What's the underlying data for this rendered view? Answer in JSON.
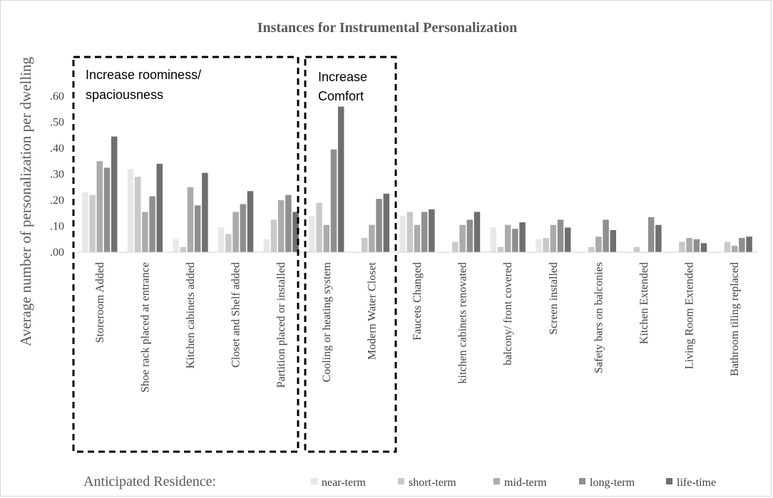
{
  "chart_data": {
    "type": "bar",
    "title": "Instances for Instrumental Personalization",
    "ylabel": "Average number of personalization per dwelling",
    "xlabel": "",
    "ylim": [
      0,
      0.6
    ],
    "yticks": [
      ".00",
      ".10",
      ".20",
      ".30",
      ".40",
      ".50",
      ".60"
    ],
    "categories": [
      "Storeroom Added",
      "Shoe rack placed at entrance",
      "Kitchen cabinets added",
      "Closet and Shelf added",
      "Partition placed or installed",
      "Cooling or heating system",
      "Modern Water Closet",
      "Faucets Changed",
      "kitchen cabinets renovated",
      "balcony/ front covered",
      "Screen installed",
      "Safety bars  on balconies",
      "Kitchen Extended",
      "Living Room Extended",
      "Bathroom tiling replaced"
    ],
    "series": [
      {
        "name": "near-term",
        "color": "#e8e8e8",
        "values": [
          0.23,
          0.32,
          0.05,
          0.095,
          0.05,
          0.14,
          0.0,
          0.14,
          0.0,
          0.095,
          0.05,
          0.0,
          0.0,
          0.0,
          0.0
        ]
      },
      {
        "name": "short-term",
        "color": "#c9c9c9",
        "values": [
          0.22,
          0.29,
          0.02,
          0.07,
          0.125,
          0.19,
          0.055,
          0.155,
          0.04,
          0.02,
          0.055,
          0.02,
          0.02,
          0.04,
          0.04
        ]
      },
      {
        "name": "mid-term",
        "color": "#ababab",
        "values": [
          0.35,
          0.155,
          0.25,
          0.155,
          0.2,
          0.105,
          0.105,
          0.105,
          0.105,
          0.105,
          0.105,
          0.06,
          0.0,
          0.055,
          0.025
        ]
      },
      {
        "name": "long-term",
        "color": "#8f8f8f",
        "values": [
          0.325,
          0.215,
          0.18,
          0.185,
          0.22,
          0.395,
          0.205,
          0.155,
          0.125,
          0.09,
          0.125,
          0.125,
          0.135,
          0.05,
          0.055
        ]
      },
      {
        "name": "life-time",
        "color": "#6f6f6f",
        "values": [
          0.445,
          0.34,
          0.305,
          0.235,
          0.155,
          0.56,
          0.225,
          0.165,
          0.155,
          0.115,
          0.095,
          0.085,
          0.105,
          0.035,
          0.06
        ]
      }
    ],
    "annotations": [
      {
        "text": "Increase roominess/",
        "text2": "spaciousness"
      },
      {
        "text": "Increase",
        "text2": "Comfort"
      }
    ],
    "legend": {
      "title": "Anticipated Residence:",
      "placement": "bottom"
    },
    "grid": false
  }
}
